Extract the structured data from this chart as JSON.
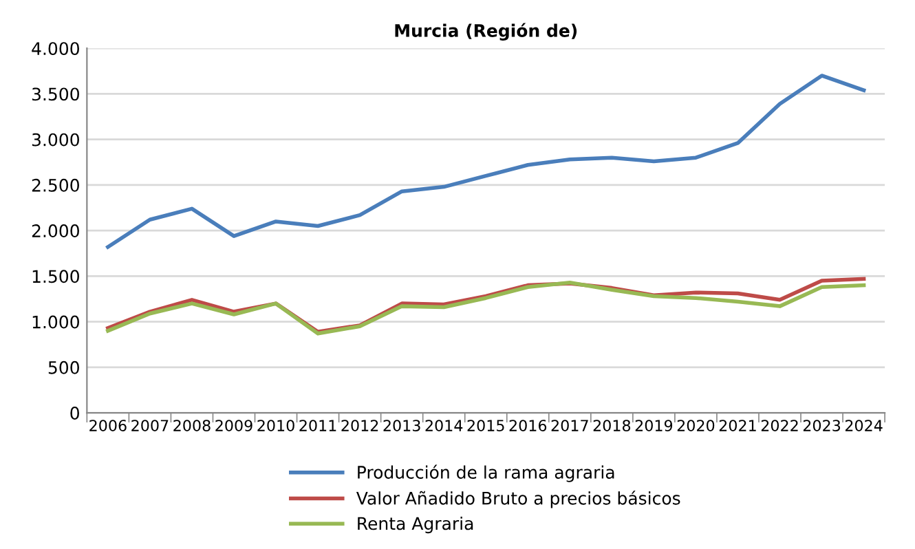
{
  "chart_data": {
    "type": "line",
    "title": "Murcia (Región de)",
    "categories": [
      "2006",
      "2007",
      "2008",
      "2009",
      "2010",
      "2011",
      "2012",
      "2013",
      "2014",
      "2015",
      "2016",
      "2017",
      "2018",
      "2019",
      "2020",
      "2021",
      "2022",
      "2023",
      "2024"
    ],
    "series": [
      {
        "name": "Producción de la rama agraria",
        "color": "#4a7ebb",
        "values": [
          1820,
          2120,
          2240,
          1940,
          2100,
          2050,
          2170,
          2430,
          2480,
          2600,
          2720,
          2780,
          2800,
          2760,
          2800,
          2960,
          3390,
          3700,
          3540
        ]
      },
      {
        "name": "Valor Añadido Bruto a precios básicos",
        "color": "#be4b48",
        "values": [
          930,
          1110,
          1240,
          1110,
          1200,
          890,
          960,
          1200,
          1190,
          1280,
          1400,
          1420,
          1370,
          1290,
          1320,
          1310,
          1240,
          1450,
          1470
        ]
      },
      {
        "name": "Renta Agraria",
        "color": "#98b954",
        "values": [
          900,
          1090,
          1200,
          1080,
          1200,
          870,
          950,
          1170,
          1160,
          1260,
          1380,
          1430,
          1350,
          1280,
          1260,
          1220,
          1170,
          1380,
          1400
        ]
      }
    ],
    "ylim": [
      0,
      4000
    ],
    "yticks": [
      {
        "value": 0,
        "label": "0"
      },
      {
        "value": 500,
        "label": "500"
      },
      {
        "value": 1000,
        "label": "1.000"
      },
      {
        "value": 1500,
        "label": "1.500"
      },
      {
        "value": 2000,
        "label": "2.000"
      },
      {
        "value": 2500,
        "label": "2.500"
      },
      {
        "value": 3000,
        "label": "3.000"
      },
      {
        "value": 3500,
        "label": "3.500"
      },
      {
        "value": 4000,
        "label": "4.000"
      }
    ],
    "grid": "y",
    "legend": "bottom",
    "marker": "none",
    "line_style": "solid"
  }
}
